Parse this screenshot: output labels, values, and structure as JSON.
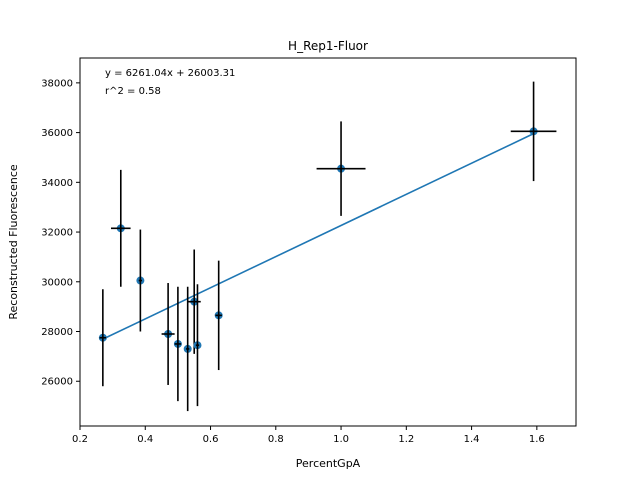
{
  "chart_data": {
    "type": "scatter",
    "title": "H_Rep1-Fluor",
    "xlabel": "PercentGpA",
    "ylabel": "Reconstructed Fluorescence",
    "xlim": [
      0.2,
      1.72
    ],
    "ylim": [
      24200,
      39000
    ],
    "xticks": [
      0.2,
      0.4,
      0.6,
      0.8,
      1.0,
      1.2,
      1.4,
      1.6
    ],
    "xtick_labels": [
      "0.2",
      "0.4",
      "0.6",
      "0.8",
      "1.0",
      "1.2",
      "1.4",
      "1.6"
    ],
    "yticks": [
      26000,
      28000,
      30000,
      32000,
      34000,
      36000,
      38000
    ],
    "ytick_labels": [
      "26000",
      "28000",
      "30000",
      "32000",
      "34000",
      "36000",
      "38000"
    ],
    "grid": false,
    "annotations": [
      "y = 6261.04x + 26003.31",
      "r^2 = 0.58"
    ],
    "fit": {
      "slope": 6261.04,
      "intercept": 26003.31,
      "x_range": [
        0.27,
        1.59
      ]
    },
    "point_color": "#1f77b4",
    "line_color": "#1f77b4",
    "errorbar_color": "#000000",
    "points": [
      {
        "x": 0.27,
        "y": 27750,
        "xerr": 0.01,
        "yerr": 1950
      },
      {
        "x": 0.325,
        "y": 32150,
        "xerr": 0.03,
        "yerr": 2350
      },
      {
        "x": 0.385,
        "y": 30050,
        "xerr": 0.005,
        "yerr": 2050
      },
      {
        "x": 0.47,
        "y": 27900,
        "xerr": 0.02,
        "yerr": 2050
      },
      {
        "x": 0.5,
        "y": 27500,
        "xerr": 0.01,
        "yerr": 2300
      },
      {
        "x": 0.53,
        "y": 27300,
        "xerr": 0.005,
        "yerr": 2500
      },
      {
        "x": 0.55,
        "y": 29200,
        "xerr": 0.02,
        "yerr": 2100
      },
      {
        "x": 0.56,
        "y": 27450,
        "xerr": 0.005,
        "yerr": 2450
      },
      {
        "x": 0.625,
        "y": 28650,
        "xerr": 0.01,
        "yerr": 2200
      },
      {
        "x": 1.0,
        "y": 34550,
        "xerr": 0.075,
        "yerr": 1900
      },
      {
        "x": 1.59,
        "y": 36050,
        "xerr": 0.07,
        "yerr": 2000
      }
    ]
  }
}
